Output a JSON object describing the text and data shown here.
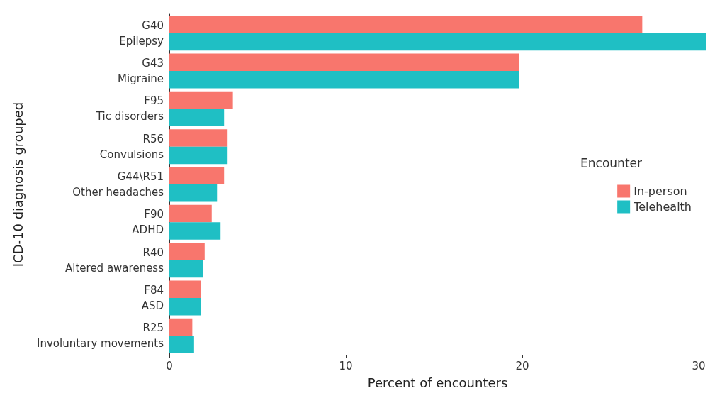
{
  "chart_data": {
    "type": "bar",
    "orientation": "horizontal",
    "xlabel": "Percent of encounters",
    "ylabel": "ICD-10 diagnosis grouped",
    "legend_title": "Encounter",
    "legend": "right",
    "categories": [
      "G40\nEpilepsy",
      "G43\nMigraine",
      "F95\nTic disorders",
      "R56\nConvulsions",
      "G44\\R51\nOther headaches",
      "F90\nADHD",
      "R40\nAltered awareness",
      "F84\nASD",
      "R25\nInvoluntary movements"
    ],
    "series": [
      {
        "name": "In-person",
        "color": "#f8766d",
        "values": [
          26.8,
          19.8,
          3.6,
          3.3,
          3.1,
          2.4,
          2.0,
          1.8,
          1.3
        ]
      },
      {
        "name": "Telehealth",
        "color": "#1fbfc4",
        "values": [
          30.4,
          19.8,
          3.1,
          3.3,
          2.7,
          2.9,
          1.9,
          1.8,
          1.4
        ]
      }
    ],
    "xlim": [
      0,
      30.4
    ],
    "xticks": [
      0,
      10,
      20,
      30
    ],
    "grid": false
  }
}
